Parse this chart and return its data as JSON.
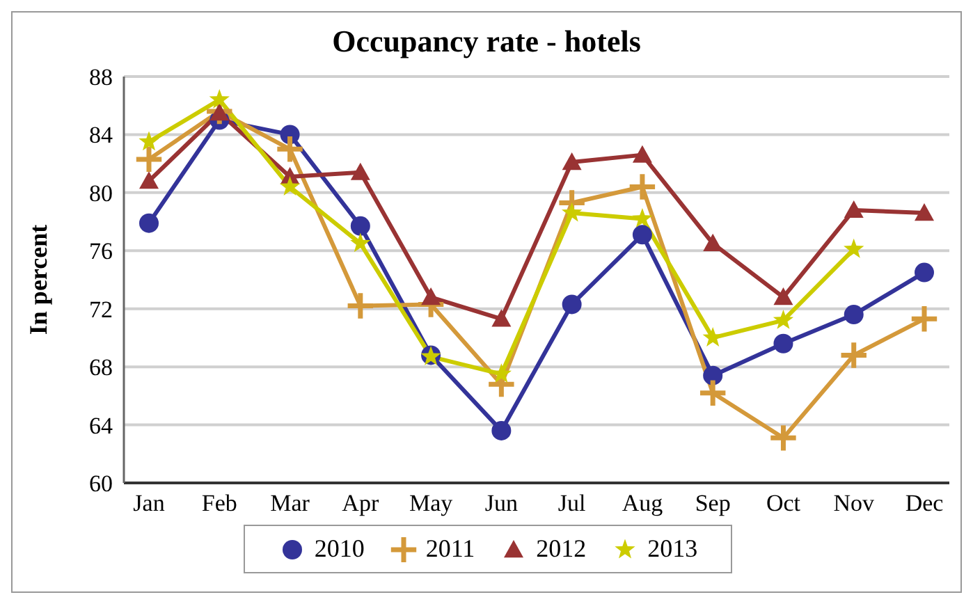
{
  "chart_data": {
    "type": "line",
    "title": "Occupancy rate - hotels",
    "ylabel": "In percent",
    "categories": [
      "Jan",
      "Feb",
      "Mar",
      "Apr",
      "May",
      "Jun",
      "Jul",
      "Aug",
      "Sep",
      "Oct",
      "Nov",
      "Dec"
    ],
    "series": [
      {
        "name": "2010",
        "color": "#333399",
        "marker": "circle",
        "values": [
          77.9,
          85.0,
          84.0,
          77.7,
          68.8,
          63.6,
          72.3,
          77.1,
          67.4,
          69.6,
          71.6,
          74.5
        ]
      },
      {
        "name": "2011",
        "color": "#d4993a",
        "marker": "cross",
        "values": [
          82.3,
          85.6,
          83.0,
          72.2,
          72.3,
          66.8,
          79.3,
          80.4,
          66.2,
          63.1,
          68.8,
          71.3
        ]
      },
      {
        "name": "2012",
        "color": "#993333",
        "marker": "triangle",
        "values": [
          80.8,
          85.5,
          81.1,
          81.4,
          72.8,
          71.3,
          82.1,
          82.6,
          76.5,
          72.8,
          78.8,
          78.6
        ]
      },
      {
        "name": "2013",
        "color": "#cccc00",
        "marker": "star",
        "values": [
          83.5,
          86.4,
          80.4,
          76.5,
          68.7,
          67.5,
          78.6,
          78.2,
          70.0,
          71.2,
          76.1,
          null
        ]
      }
    ],
    "ylim": [
      60,
      88
    ],
    "yticks": [
      60,
      64,
      68,
      72,
      76,
      80,
      84,
      88
    ],
    "grid": "y",
    "legend": "bottom",
    "line_style": "solid"
  }
}
